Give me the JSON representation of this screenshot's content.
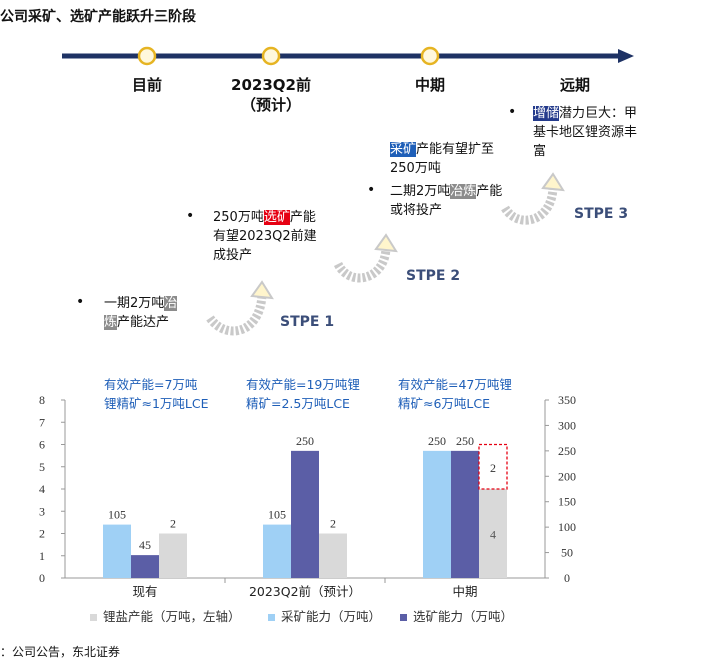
{
  "title": "公司采矿、选矿产能跃升三阶段",
  "timeline": {
    "stages": [
      "目前",
      "2023Q2前",
      "中期",
      "远期"
    ],
    "stage2_sub": "（预计）"
  },
  "steps": [
    "STPE 1",
    "STPE 2",
    "STPE 3"
  ],
  "bullets": {
    "b1": {
      "pre": "一期2万吨",
      "hl": "冶",
      "hl2": "炼",
      "post": "产能达产"
    },
    "b2": {
      "pre": "250万吨",
      "hl": "选矿",
      "post": "产能有望2023Q2前建成投产"
    },
    "b3": {
      "hl": "采矿",
      "post": "产能有望扩至250万吨"
    },
    "b4": {
      "pre": "二期2万吨",
      "hl": "冶炼",
      "post": "产能或将投产"
    },
    "b5": {
      "hl": "增储",
      "post": "潜力巨大：甲基卡地区锂资源丰富"
    }
  },
  "effective": [
    {
      "line1": "有效产能=7万吨",
      "line2": "锂精矿≈1万吨LCE"
    },
    {
      "line1": "有效产能=19万吨锂",
      "line2": "精矿=2.5万吨LCE"
    },
    {
      "line1": "有效产能=47万吨锂",
      "line2": "精矿≈6万吨LCE"
    }
  ],
  "chart_data": {
    "type": "bar",
    "categories": [
      "现有",
      "2023Q2前（预计）",
      "中期"
    ],
    "series": [
      {
        "name": "锂盐产能（万吨，左轴）",
        "axis": "left",
        "color": "#d9d9d9",
        "values": [
          2,
          2,
          4
        ],
        "stack_extra": [
          0,
          0,
          2
        ]
      },
      {
        "name": "采矿能力（万吨）",
        "axis": "right",
        "color": "#9fd0f5",
        "values": [
          105,
          105,
          250
        ]
      },
      {
        "name": "选矿能力（万吨）",
        "axis": "right",
        "color": "#5b5ea6",
        "values": [
          45,
          250,
          250
        ]
      }
    ],
    "ylim_left": [
      0,
      8
    ],
    "ylim_right": [
      0,
      350
    ],
    "left_ticks": [
      "0",
      "1",
      "2",
      "3",
      "4",
      "5",
      "6",
      "7",
      "8"
    ],
    "right_ticks": [
      "0",
      "50",
      "100",
      "150",
      "200",
      "250",
      "300",
      "350"
    ],
    "labels": {
      "mining": [
        "105",
        "105",
        "250"
      ],
      "dressing": [
        "45",
        "250",
        "250"
      ],
      "salt": [
        "2",
        "2",
        "4"
      ],
      "salt_extra": "2"
    }
  },
  "source": "：公司公告，东北证券"
}
